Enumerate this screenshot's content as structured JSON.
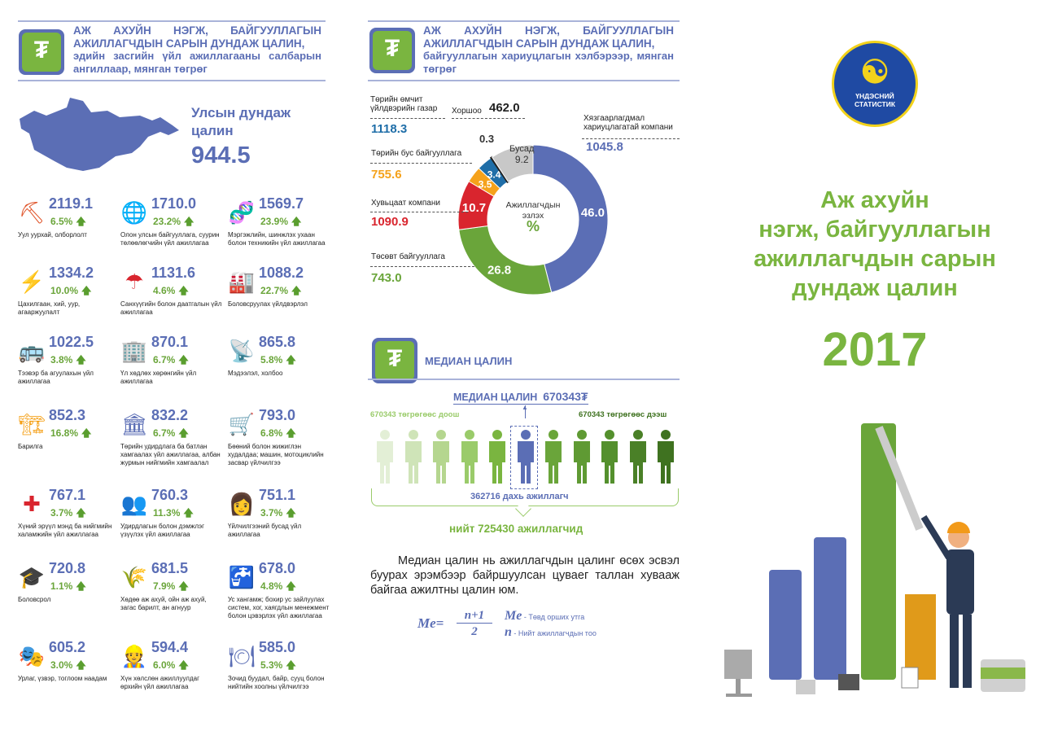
{
  "left": {
    "title_main": "АЖ АХУЙН НЭГЖ, БАЙГУУЛЛАГЫН АЖИЛЛАГЧДЫН САРЫН ДУНДАЖ ЦАЛИН,",
    "title_sub": "эдийн засгийн үйл ажиллагааны салбарын ангиллаар, мянган төгрөг",
    "national_label": "Улсын дундаж цалин",
    "national_value": "944.5",
    "industries": [
      {
        "value": "2119.1",
        "pct": "6.5%",
        "label": "Уул уурхай, олборлолт",
        "icon": "mining-icon",
        "glyph": "⛏",
        "color": "#e0552b"
      },
      {
        "value": "1710.0",
        "pct": "23.2%",
        "label": "Олон улсын байгууллага, суурин төлөөлөгчийн үйл ажиллагаа",
        "icon": "globe-icon",
        "glyph": "🌐",
        "color": "#5b6eb5"
      },
      {
        "value": "1569.7",
        "pct": "23.9%",
        "label": "Мэргэжлийн, шинжлэх ухаан болон техникийн үйл ажиллагаа",
        "icon": "dna-gear-icon",
        "glyph": "🧬",
        "color": "#2a9fa5"
      },
      {
        "value": "1334.2",
        "pct": "10.0%",
        "label": "Цахилгаан, хий, уур, агааржуулалт",
        "icon": "lightning-icon",
        "glyph": "⚡",
        "color": "#f5a21b"
      },
      {
        "value": "1131.6",
        "pct": "4.6%",
        "label": "Санхүүгийн болон даатгалын үйл ажиллагаа",
        "icon": "calculator-umbrella-icon",
        "glyph": "☂",
        "color": "#d9252e"
      },
      {
        "value": "1088.2",
        "pct": "22.7%",
        "label": "Боловсруулах үйлдвэрлэл",
        "icon": "factory-icon",
        "glyph": "🏭",
        "color": "#333"
      },
      {
        "value": "1022.5",
        "pct": "3.8%",
        "label": "Тээвэр ба агуулахын үйл ажиллагаа",
        "icon": "bus-truck-icon",
        "glyph": "🚌",
        "color": "#d9252e"
      },
      {
        "value": "870.1",
        "pct": "6.7%",
        "label": "Үл хөдлөх хөрөнгийн үйл ажиллагаа",
        "icon": "building-key-icon",
        "glyph": "🏢",
        "color": "#5b6eb5"
      },
      {
        "value": "865.8",
        "pct": "5.8%",
        "label": "Мэдээлэл, холбоо",
        "icon": "antenna-icon",
        "glyph": "📡",
        "color": "#333"
      },
      {
        "value": "852.3",
        "pct": "16.8%",
        "label": "Барилга",
        "icon": "crane-icon",
        "glyph": "🏗",
        "color": "#f5a21b"
      },
      {
        "value": "832.2",
        "pct": "6.7%",
        "label": "Төрийн удирдлага ба батлан хамгаалах үйл ажиллагаа, албан журмын нийгмийн хамгаалал",
        "icon": "government-building-icon",
        "glyph": "🏛",
        "color": "#5b6eb5"
      },
      {
        "value": "793.0",
        "pct": "6.8%",
        "label": "Бөөний болон жижиглэн худалдаа; машин, мотоциклийн засвар үйлчилгээ",
        "icon": "cart-tools-icon",
        "glyph": "🛒",
        "color": "#d9252e"
      },
      {
        "value": "767.1",
        "pct": "3.7%",
        "label": "Хүний эрүүл мэнд ба нийгмийн халамжийн үйл ажиллагаа",
        "icon": "red-cross-icon",
        "glyph": "✚",
        "color": "#d9252e"
      },
      {
        "value": "760.3",
        "pct": "11.3%",
        "label": "Удирдлагын болон дэмжлэг үзүүлэх үйл ажиллагаа",
        "icon": "people-icon",
        "glyph": "👥",
        "color": "#333"
      },
      {
        "value": "751.1",
        "pct": "3.7%",
        "label": "Үйлчилгээний бусад үйл ажиллагаа",
        "icon": "woman-icon",
        "glyph": "👩",
        "color": "#333"
      },
      {
        "value": "720.8",
        "pct": "1.1%",
        "label": "Боловсрол",
        "icon": "graduate-icon",
        "glyph": "🎓",
        "color": "#333"
      },
      {
        "value": "681.5",
        "pct": "7.9%",
        "label": "Хөдөө аж ахуй, ойн аж ахуй, загас барилт, ан агнуур",
        "icon": "wheat-sun-icon",
        "glyph": "🌾",
        "color": "#f5a21b"
      },
      {
        "value": "678.0",
        "pct": "4.8%",
        "label": "Ус хангамж; бохир ус зайлуулах систем, хог, хаягдлын менежмент болон цэвэрлэх үйл ажиллагаа",
        "icon": "faucet-icon",
        "glyph": "🚰",
        "color": "#888"
      },
      {
        "value": "605.2",
        "pct": "3.0%",
        "label": "Урлаг, үзвэр, тоглоом наадам",
        "icon": "theater-masks-icon",
        "glyph": "🎭",
        "color": "#f5a21b"
      },
      {
        "value": "594.4",
        "pct": "6.0%",
        "label": "Хүн хөлслөн ажиллуулдаг өрхийн үйл ажиллагаа",
        "icon": "worker-shovel-icon",
        "glyph": "👷",
        "color": "#5b6eb5"
      },
      {
        "value": "585.0",
        "pct": "5.3%",
        "label": "Зочид буудал, байр, сууц болон нийтийн хоолны үйлчилгээ",
        "icon": "hotel-plate-icon",
        "glyph": "🍽",
        "color": "#5b6eb5"
      }
    ]
  },
  "middle": {
    "title_main": "АЖ АХУЙН НЭГЖ, БАЙГУУЛЛАГЫН АЖИЛЛАГЧДЫН САРЫН ДУНДАЖ ЦАЛИН,",
    "title_sub": "байгууллагын хариуцлагын хэлбэрээр, мянган төгрөг",
    "donut_center_1": "Ажиллагчдын",
    "donut_center_2": "эзлэх",
    "donut_center_3": "%",
    "segments": [
      {
        "name": "Хязгаарлагдмал хариуцлагатай компани",
        "pct": 46.0,
        "salary": "1045.8",
        "color": "#5b6eb5"
      },
      {
        "name": "Төсөвт байгууллага",
        "pct": 26.8,
        "salary": "743.0",
        "color": "#6aa53a"
      },
      {
        "name": "Хувьцаат компани",
        "pct": 10.7,
        "salary": "1090.9",
        "color": "#d9252e"
      },
      {
        "name": "Төрийн бус байгууллага",
        "pct": 3.5,
        "salary": "755.6",
        "color": "#f5a21b"
      },
      {
        "name": "Төрийн өмчит үйлдвэрийн газар",
        "pct": 3.4,
        "salary": "1118.3",
        "color": "#1f6ea8"
      },
      {
        "name": "Хоршоо",
        "pct": 0.3,
        "salary": "462.0",
        "color": "#222222"
      },
      {
        "name": "Бусад",
        "pct": 9.2,
        "salary": "",
        "color": "#c8c8c8"
      }
    ],
    "median_title": "МЕДИАН ЦАЛИН",
    "median_heading": "МЕДИАН ЦАЛИН",
    "median_value": "670343₮",
    "below_label": "670343 төгрөгөөс доош",
    "above_label": "670343 төгрөгөөс дээш",
    "median_worker": "362716 дахь ажиллагч",
    "total_workers": "нийт 725430 ажиллагчид",
    "description": "Медиан цалин нь ажиллагчдын цалинг өсөх эсвэл буурах эрэмбээр байршуулсан цуваег таллан хувааж байгаа ажилтны цалин юм.",
    "formula_lhs": "Me",
    "formula_num": "n+1",
    "formula_den": "2",
    "legend_me": "Төвд орших утга",
    "legend_n": "Нийт ажиллагчдын тоо",
    "people_colors": [
      "#e3efd6",
      "#cfe4b8",
      "#b5d68f",
      "#9acb6a",
      "#7ab540",
      "#5b6eb5",
      "#6aa53a",
      "#5f9a33",
      "#54902d",
      "#4a8027",
      "#3f7220"
    ]
  },
  "right": {
    "logo_text_1": "ҮНДЭСНИЙ",
    "logo_text_2": "СТАТИСТИК",
    "title_lines": [
      "Аж ахуйн",
      "нэгж, байгууллагын",
      "ажиллагчдын сарын",
      "дундаж цалин"
    ],
    "year": "2017"
  }
}
